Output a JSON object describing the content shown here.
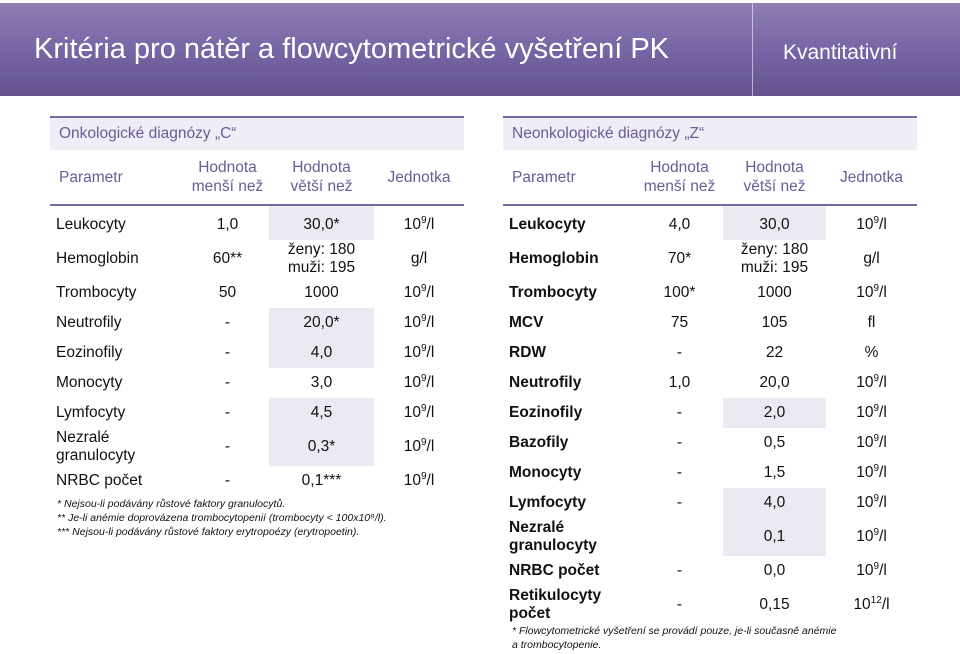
{
  "header": {
    "title": "Kritéria pro nátěr a flowcytometrické vyšetření PK",
    "badge": "Kvantitativní"
  },
  "left": {
    "title": "Onkologické diagnózy „C“",
    "columns": {
      "param": "Parametr",
      "min_1": "Hodnota",
      "min_2": "menší než",
      "max_1": "Hodnota",
      "max_2": "větší než",
      "unit": "Jednotka"
    },
    "rows": [
      {
        "name": "Leukocyty",
        "min": "1,0",
        "max": "30,0*",
        "unit_base": "10",
        "unit_exp": "9",
        "unit_tail": "/l"
      },
      {
        "name": "Hemoglobin",
        "min": "60**",
        "max_1": "ženy: 180",
        "max_2": "muži: 195",
        "unit": "g/l"
      },
      {
        "name": "Trombocyty",
        "min": "50",
        "max": "1000",
        "unit_base": "10",
        "unit_exp": "9",
        "unit_tail": "/l"
      },
      {
        "name": "Neutrofily",
        "min": "-",
        "max": "20,0*",
        "unit_base": "10",
        "unit_exp": "9",
        "unit_tail": "/l"
      },
      {
        "name": "Eozinofily",
        "min": "-",
        "max": "4,0",
        "unit_base": "10",
        "unit_exp": "9",
        "unit_tail": "/l"
      },
      {
        "name": "Monocyty",
        "min": "-",
        "max": "3,0",
        "unit_base": "10",
        "unit_exp": "9",
        "unit_tail": "/l"
      },
      {
        "name": "Lymfocyty",
        "min": "-",
        "max": "4,5",
        "unit_base": "10",
        "unit_exp": "9",
        "unit_tail": "/l"
      },
      {
        "name_1": "Nezralé",
        "name_2": "granulocyty",
        "min": "-",
        "max": "0,3*",
        "unit_base": "10",
        "unit_exp": "9",
        "unit_tail": "/l"
      },
      {
        "name": "NRBC počet",
        "min": "-",
        "max": "0,1***",
        "unit_base": "10",
        "unit_exp": "9",
        "unit_tail": "/l"
      }
    ],
    "footnotes": [
      "*  Nejsou-li podávány růstové faktory granulocytů.",
      "** Je-li anémie doprovázena trombocytopenií (trombocyty < 100x10⁹/l).",
      "*** Nejsou-li podávány růstové faktory erytropoézy (erytropoetin)."
    ]
  },
  "right": {
    "title": "Neonkologické diagnózy „Z“",
    "columns": {
      "param": "Parametr",
      "min_1": "Hodnota",
      "min_2": "menší než",
      "max_1": "Hodnota",
      "max_2": "větší než",
      "unit": "Jednotka"
    },
    "rows": [
      {
        "name": "Leukocyty",
        "min": "4,0",
        "max": "30,0",
        "unit_base": "10",
        "unit_exp": "9",
        "unit_tail": "/l"
      },
      {
        "name": "Hemoglobin",
        "min": "70*",
        "max_1": "ženy: 180",
        "max_2": "muži: 195",
        "unit": "g/l"
      },
      {
        "name": "Trombocyty",
        "min": "100*",
        "max": "1000",
        "unit_base": "10",
        "unit_exp": "9",
        "unit_tail": "/l"
      },
      {
        "name": "MCV",
        "min": "75",
        "max": "105",
        "unit": "fl"
      },
      {
        "name": "RDW",
        "min": "-",
        "max": "22",
        "unit": "%"
      },
      {
        "name": "Neutrofily",
        "min": "1,0",
        "max": "20,0",
        "unit_base": "10",
        "unit_exp": "9",
        "unit_tail": "/l"
      },
      {
        "name": "Eozinofily",
        "min": "-",
        "max": "2,0",
        "unit_base": "10",
        "unit_exp": "9",
        "unit_tail": "/l"
      },
      {
        "name": "Bazofily",
        "min": "-",
        "max": "0,5",
        "unit_base": "10",
        "unit_exp": "9",
        "unit_tail": "/l"
      },
      {
        "name": "Monocyty",
        "min": "-",
        "max": "1,5",
        "unit_base": "10",
        "unit_exp": "9",
        "unit_tail": "/l"
      },
      {
        "name": "Lymfocyty",
        "min": "-",
        "max": "4,0",
        "unit_base": "10",
        "unit_exp": "9",
        "unit_tail": "/l"
      },
      {
        "name_1": "Nezralé",
        "name_2": "granulocyty",
        "min": "",
        "max": "0,1",
        "unit_base": "10",
        "unit_exp": "9",
        "unit_tail": "/l"
      },
      {
        "name": "NRBC počet",
        "min": "-",
        "max": "0,0",
        "unit_base": "10",
        "unit_exp": "9",
        "unit_tail": "/l"
      },
      {
        "name_1": "Retikulocyty",
        "name_2": "počet",
        "min": "-",
        "max": "0,15",
        "unit_base": "10",
        "unit_exp": "12",
        "unit_tail": "/l"
      }
    ],
    "footnotes": [
      "* Flowcytometrické vyšetření se provádí pouze,  je-li současně anémie",
      "a trombocytopenie."
    ]
  }
}
